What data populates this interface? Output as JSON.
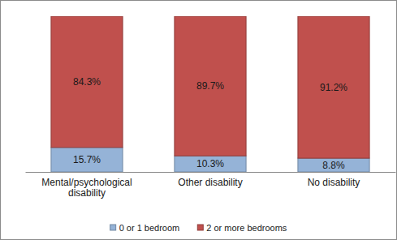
{
  "chart_data": {
    "type": "bar",
    "stacked": true,
    "data_labels": true,
    "legend": "bottom",
    "tick_labels": "x",
    "categories": [
      "Mental/psychological disability",
      "Other disability",
      "No disability"
    ],
    "ylim": [
      0,
      100
    ],
    "series": [
      {
        "name": "0 or 1 bedroom",
        "color": "#95b3d7",
        "values": [
          15.7,
          10.3,
          8.8
        ],
        "value_labels": [
          "15.7%",
          "10.3%",
          "8.8%"
        ]
      },
      {
        "name": "2 or more bedrooms",
        "color": "#c0504d",
        "values": [
          84.3,
          89.7,
          91.2
        ],
        "value_labels": [
          "84.3%",
          "89.7%",
          "91.2%"
        ]
      }
    ]
  }
}
